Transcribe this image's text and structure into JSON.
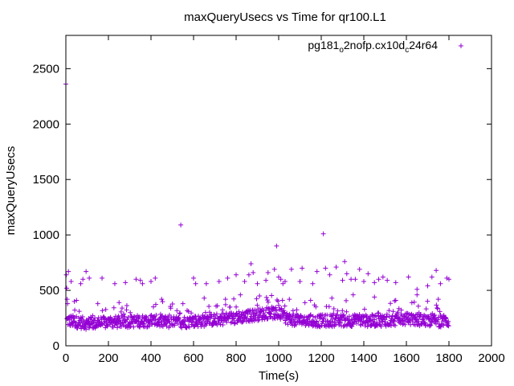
{
  "chart_data": {
    "type": "scatter",
    "title": "maxQueryUsecs vs Time for qr100.L1",
    "xlabel": "Time(s)",
    "ylabel": "maxQueryUsecs",
    "xlim": [
      0,
      2000
    ],
    "ylim": [
      0,
      2800
    ],
    "x_ticks": [
      "0",
      "200",
      "400",
      "600",
      "800",
      "1000",
      "1200",
      "1400",
      "1600",
      "1800",
      "2000"
    ],
    "y_ticks": [
      "0",
      "500",
      "1000",
      "1500",
      "2000",
      "2500"
    ],
    "grid": false,
    "legend_position": "top-right",
    "legend_marker": "+",
    "series": [
      {
        "name": "pg181_o2nofp.cx10d_c24r64",
        "color": "#9400d3",
        "marker": "+",
        "points": [
          [
            0,
            2360
          ],
          [
            2,
            640
          ],
          [
            4,
            520
          ],
          [
            6,
            420
          ],
          [
            8,
            380
          ],
          [
            12,
            670
          ],
          [
            25,
            580
          ],
          [
            40,
            400
          ],
          [
            70,
            560
          ],
          [
            80,
            600
          ],
          [
            95,
            670
          ],
          [
            110,
            610
          ],
          [
            170,
            610
          ],
          [
            230,
            560
          ],
          [
            280,
            570
          ],
          [
            330,
            600
          ],
          [
            350,
            590
          ],
          [
            360,
            560
          ],
          [
            400,
            580
          ],
          [
            420,
            610
          ],
          [
            540,
            1090
          ],
          [
            600,
            610
          ],
          [
            610,
            560
          ],
          [
            660,
            560
          ],
          [
            720,
            580
          ],
          [
            760,
            610
          ],
          [
            800,
            640
          ],
          [
            840,
            580
          ],
          [
            860,
            640
          ],
          [
            870,
            740
          ],
          [
            880,
            660
          ],
          [
            900,
            560
          ],
          [
            940,
            590
          ],
          [
            950,
            660
          ],
          [
            980,
            690
          ],
          [
            990,
            900
          ],
          [
            1000,
            620
          ],
          [
            1010,
            600
          ],
          [
            1020,
            560
          ],
          [
            1030,
            580
          ],
          [
            1060,
            690
          ],
          [
            1100,
            580
          ],
          [
            1110,
            700
          ],
          [
            1160,
            560
          ],
          [
            1180,
            670
          ],
          [
            1210,
            1010
          ],
          [
            1220,
            700
          ],
          [
            1240,
            640
          ],
          [
            1270,
            710
          ],
          [
            1300,
            590
          ],
          [
            1310,
            760
          ],
          [
            1320,
            650
          ],
          [
            1340,
            600
          ],
          [
            1360,
            600
          ],
          [
            1380,
            690
          ],
          [
            1400,
            580
          ],
          [
            1420,
            650
          ],
          [
            1450,
            570
          ],
          [
            1470,
            600
          ],
          [
            1490,
            620
          ],
          [
            1510,
            590
          ],
          [
            1550,
            570
          ],
          [
            1610,
            620
          ],
          [
            1650,
            510
          ],
          [
            1700,
            540
          ],
          [
            1720,
            620
          ],
          [
            1740,
            680
          ],
          [
            1760,
            560
          ],
          [
            1790,
            610
          ],
          [
            1800,
            600
          ],
          [
            50,
            410
          ],
          [
            150,
            380
          ],
          [
            250,
            390
          ],
          [
            450,
            420
          ],
          [
            550,
            380
          ],
          [
            650,
            430
          ],
          [
            750,
            420
          ],
          [
            820,
            460
          ],
          [
            910,
            450
          ],
          [
            1050,
            420
          ],
          [
            1150,
            410
          ],
          [
            1250,
            430
          ],
          [
            1350,
            460
          ],
          [
            1450,
            440
          ],
          [
            1550,
            410
          ],
          [
            1650,
            460
          ],
          [
            1750,
            420
          ]
        ],
        "dense_band": [
          [
            0,
            230
          ],
          [
            100,
            200
          ],
          [
            200,
            210
          ],
          [
            300,
            220
          ],
          [
            400,
            225
          ],
          [
            500,
            210
          ],
          [
            600,
            220
          ],
          [
            700,
            235
          ],
          [
            800,
            255
          ],
          [
            900,
            280
          ],
          [
            960,
            300
          ],
          [
            1000,
            285
          ],
          [
            1050,
            240
          ],
          [
            1100,
            230
          ],
          [
            1200,
            225
          ],
          [
            1300,
            230
          ],
          [
            1400,
            225
          ],
          [
            1500,
            230
          ],
          [
            1600,
            240
          ],
          [
            1700,
            230
          ],
          [
            1800,
            220
          ]
        ]
      }
    ]
  }
}
